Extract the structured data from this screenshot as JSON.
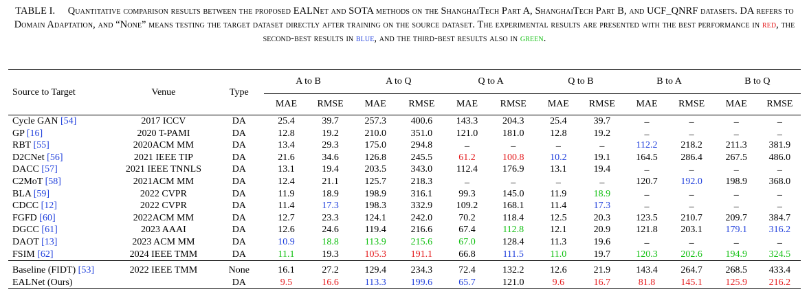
{
  "caption": {
    "label": "TABLE I.",
    "text_1": "Quantitative comparison results between the proposed EALNet and SOTA methods on the ShanghaiTech Part A, ShanghaiTech Part B, and UCF_QNRF datasets. DA refers to Domain Adaptation, and “None” means testing the target dataset directly after training on the source dataset. The experimental results are presented with the best performance in ",
    "red_word": "red",
    "text_2": ", the second-best results in ",
    "blue_word": "blue",
    "text_3": ", and the third-best results also in ",
    "green_word": "green",
    "text_4": "."
  },
  "colors": {
    "best": "#e41a1c",
    "second": "#1f3fdc",
    "third": "#12c012",
    "citation": "#1f3fdc"
  },
  "headers": {
    "source_to_target": "Source to Target",
    "venue": "Venue",
    "type": "Type",
    "groups": [
      "A to B",
      "A to Q",
      "Q to A",
      "Q to B",
      "B to A",
      "B to Q"
    ],
    "mae": "MAE",
    "rmse": "RMSE"
  },
  "rows": [
    {
      "name": "Cycle GAN",
      "cite": "[54]",
      "venue": "2017 ICCV",
      "type": "DA",
      "cells": [
        {
          "v": "25.4"
        },
        {
          "v": "39.7"
        },
        {
          "v": "257.3"
        },
        {
          "v": "400.6"
        },
        {
          "v": "143.3"
        },
        {
          "v": "204.3"
        },
        {
          "v": "25.4"
        },
        {
          "v": "39.7"
        },
        {
          "v": "_"
        },
        {
          "v": "_"
        },
        {
          "v": "_"
        },
        {
          "v": "_"
        }
      ]
    },
    {
      "name": "GP",
      "cite": "[16]",
      "venue": "2020 T-PAMI",
      "type": "DA",
      "cells": [
        {
          "v": "12.8"
        },
        {
          "v": "19.2"
        },
        {
          "v": "210.0"
        },
        {
          "v": "351.0"
        },
        {
          "v": "121.0"
        },
        {
          "v": "181.0"
        },
        {
          "v": "12.8"
        },
        {
          "v": "19.2"
        },
        {
          "v": "_"
        },
        {
          "v": "_"
        },
        {
          "v": "_"
        },
        {
          "v": "_"
        }
      ]
    },
    {
      "name": "RBT",
      "cite": "[55]",
      "venue": "2020ACM MM",
      "type": "DA",
      "cells": [
        {
          "v": "13.4"
        },
        {
          "v": "29.3"
        },
        {
          "v": "175.0"
        },
        {
          "v": "294.8"
        },
        {
          "v": "_"
        },
        {
          "v": "_"
        },
        {
          "v": "_"
        },
        {
          "v": "_"
        },
        {
          "v": "112.2",
          "c": "b"
        },
        {
          "v": "218.2"
        },
        {
          "v": "211.3"
        },
        {
          "v": "381.9"
        }
      ]
    },
    {
      "name": "D2CNet",
      "cite": "[56]",
      "venue": "2021 IEEE TIP",
      "type": "DA",
      "cells": [
        {
          "v": "21.6"
        },
        {
          "v": "34.6"
        },
        {
          "v": "126.8"
        },
        {
          "v": "245.5"
        },
        {
          "v": "61.2",
          "c": "r"
        },
        {
          "v": "100.8",
          "c": "r"
        },
        {
          "v": "10.2",
          "c": "b"
        },
        {
          "v": "19.1"
        },
        {
          "v": "164.5"
        },
        {
          "v": "286.4"
        },
        {
          "v": "267.5"
        },
        {
          "v": "486.0"
        }
      ]
    },
    {
      "name": "DACC",
      "cite": "[57]",
      "venue": "2021 IEEE TNNLS",
      "type": "DA",
      "cells": [
        {
          "v": "13.1"
        },
        {
          "v": "19.4"
        },
        {
          "v": "203.5"
        },
        {
          "v": "343.0"
        },
        {
          "v": "112.4"
        },
        {
          "v": "176.9"
        },
        {
          "v": "13.1"
        },
        {
          "v": "19.4"
        },
        {
          "v": "_"
        },
        {
          "v": "_"
        },
        {
          "v": "_"
        },
        {
          "v": "_"
        }
      ]
    },
    {
      "name": "C2MoT",
      "cite": "[58]",
      "venue": "2021ACM MM",
      "type": "DA",
      "cells": [
        {
          "v": "12.4"
        },
        {
          "v": "21.1"
        },
        {
          "v": "125.7"
        },
        {
          "v": "218.3"
        },
        {
          "v": "_"
        },
        {
          "v": "_"
        },
        {
          "v": "_"
        },
        {
          "v": "_"
        },
        {
          "v": "120.7"
        },
        {
          "v": "192.0",
          "c": "b"
        },
        {
          "v": "198.9"
        },
        {
          "v": "368.0"
        }
      ]
    },
    {
      "name": "BLA",
      "cite": "[59]",
      "venue": "2022 CVPR",
      "type": "DA",
      "cells": [
        {
          "v": "11.9"
        },
        {
          "v": "18.9"
        },
        {
          "v": "198.9"
        },
        {
          "v": "316.1"
        },
        {
          "v": "99.3"
        },
        {
          "v": "145.0"
        },
        {
          "v": "11.9"
        },
        {
          "v": "18.9",
          "c": "g"
        },
        {
          "v": "_"
        },
        {
          "v": "_"
        },
        {
          "v": "_"
        },
        {
          "v": "_"
        }
      ]
    },
    {
      "name": "CDCC",
      "cite": "[12]",
      "venue": "2022 CVPR",
      "type": "DA",
      "cells": [
        {
          "v": "11.4"
        },
        {
          "v": "17.3",
          "c": "b"
        },
        {
          "v": "198.3"
        },
        {
          "v": "332.9"
        },
        {
          "v": "109.2"
        },
        {
          "v": "168.1"
        },
        {
          "v": "11.4"
        },
        {
          "v": "17.3",
          "c": "b"
        },
        {
          "v": "_"
        },
        {
          "v": "_"
        },
        {
          "v": "_"
        },
        {
          "v": "_"
        }
      ]
    },
    {
      "name": "FGFD",
      "cite": "[60]",
      "venue": "2022ACM MM",
      "type": "DA",
      "cells": [
        {
          "v": "12.7"
        },
        {
          "v": "23.3"
        },
        {
          "v": "124.1"
        },
        {
          "v": "242.0"
        },
        {
          "v": "70.2"
        },
        {
          "v": "118.4"
        },
        {
          "v": "12.5"
        },
        {
          "v": "20.3"
        },
        {
          "v": "123.5"
        },
        {
          "v": "210.7"
        },
        {
          "v": "209.7"
        },
        {
          "v": "384.7"
        }
      ]
    },
    {
      "name": "DGCC",
      "cite": "[61]",
      "venue": "2023 AAAI",
      "type": "DA",
      "cells": [
        {
          "v": "12.6"
        },
        {
          "v": "24.6"
        },
        {
          "v": "119.4"
        },
        {
          "v": "216.6"
        },
        {
          "v": "67.4"
        },
        {
          "v": "112.8",
          "c": "g"
        },
        {
          "v": "12.1"
        },
        {
          "v": "20.9"
        },
        {
          "v": "121.8"
        },
        {
          "v": "203.1"
        },
        {
          "v": "179.1",
          "c": "b"
        },
        {
          "v": "316.2",
          "c": "b"
        }
      ]
    },
    {
      "name": "DAOT",
      "cite": "[13]",
      "venue": "2023 ACM MM",
      "type": "DA",
      "cells": [
        {
          "v": "10.9",
          "c": "b"
        },
        {
          "v": "18.8",
          "c": "g"
        },
        {
          "v": "113.9",
          "c": "g"
        },
        {
          "v": "215.6",
          "c": "g"
        },
        {
          "v": "67.0",
          "c": "g"
        },
        {
          "v": "128.4"
        },
        {
          "v": "11.3"
        },
        {
          "v": "19.6"
        },
        {
          "v": "_"
        },
        {
          "v": "_"
        },
        {
          "v": "_"
        },
        {
          "v": "_"
        }
      ]
    },
    {
      "name": "FSIM",
      "cite": "[62]",
      "venue": "2024 IEEE TMM",
      "type": "DA",
      "cells": [
        {
          "v": "11.1",
          "c": "g"
        },
        {
          "v": "19.3"
        },
        {
          "v": "105.3",
          "c": "r"
        },
        {
          "v": "191.1",
          "c": "r"
        },
        {
          "v": "66.8"
        },
        {
          "v": "111.5",
          "c": "b"
        },
        {
          "v": "11.0",
          "c": "g"
        },
        {
          "v": "19.7"
        },
        {
          "v": "120.3",
          "c": "g"
        },
        {
          "v": "202.6",
          "c": "g"
        },
        {
          "v": "194.9",
          "c": "g"
        },
        {
          "v": "324.5",
          "c": "g"
        }
      ]
    }
  ],
  "bottom_rows": [
    {
      "name": "Baseline (FIDT)",
      "cite": "[53]",
      "venue": "2022 IEEE TMM",
      "type": "None",
      "cells": [
        {
          "v": "16.1"
        },
        {
          "v": "27.2"
        },
        {
          "v": "129.4"
        },
        {
          "v": "234.3"
        },
        {
          "v": "72.4"
        },
        {
          "v": "132.2"
        },
        {
          "v": "12.6"
        },
        {
          "v": "21.9"
        },
        {
          "v": "143.4"
        },
        {
          "v": "264.7"
        },
        {
          "v": "268.5"
        },
        {
          "v": "433.4"
        }
      ]
    },
    {
      "name": "EALNet (Ours)",
      "cite": "",
      "venue": "",
      "type": "DA",
      "cells": [
        {
          "v": "9.5",
          "c": "r"
        },
        {
          "v": "16.6",
          "c": "r"
        },
        {
          "v": "113.3",
          "c": "b"
        },
        {
          "v": "199.6",
          "c": "b"
        },
        {
          "v": "65.7",
          "c": "b"
        },
        {
          "v": "121.0"
        },
        {
          "v": "9.6",
          "c": "r"
        },
        {
          "v": "16.7",
          "c": "r"
        },
        {
          "v": "81.8",
          "c": "r"
        },
        {
          "v": "145.1",
          "c": "r"
        },
        {
          "v": "125.9",
          "c": "r"
        },
        {
          "v": "216.2",
          "c": "r"
        }
      ]
    }
  ]
}
